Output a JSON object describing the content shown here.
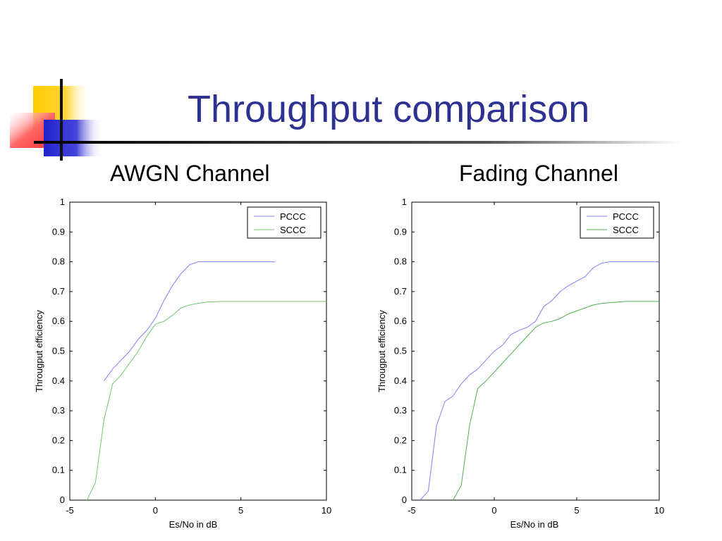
{
  "slide": {
    "title": "Throughput comparison"
  },
  "colors": {
    "title": "#2e3192",
    "pccc": "#8080ff",
    "sccc_awgn": "#6fc96f",
    "sccc_fading": "#4caf50"
  },
  "chart_data": [
    {
      "type": "line",
      "title": "AWGN Channel",
      "xlabel": "Es/No in dB",
      "ylabel": "Througput efficiency",
      "xlim": [
        -5,
        10
      ],
      "ylim": [
        0,
        1
      ],
      "xticks": [
        "-5",
        "0",
        "5",
        "10"
      ],
      "yticks": [
        "0",
        "0.1",
        "0.2",
        "0.3",
        "0.4",
        "0.5",
        "0.6",
        "0.7",
        "0.8",
        "0.9",
        "1"
      ],
      "legend": "top-right",
      "series": [
        {
          "name": "PCCC",
          "x": [
            -3,
            -2.5,
            -2,
            -1.5,
            -1,
            -0.5,
            0,
            0.5,
            1,
            1.5,
            2,
            2.5,
            3,
            4,
            5,
            6,
            7
          ],
          "y": [
            0.4,
            0.44,
            0.47,
            0.5,
            0.54,
            0.57,
            0.61,
            0.67,
            0.72,
            0.76,
            0.79,
            0.8,
            0.8,
            0.8,
            0.8,
            0.8,
            0.8
          ]
        },
        {
          "name": "SCCC",
          "x": [
            -4,
            -3.5,
            -3,
            -2.5,
            -2,
            -1.5,
            -1,
            -0.5,
            0,
            0.5,
            1,
            1.5,
            2,
            2.5,
            3,
            4,
            5,
            6,
            7,
            8,
            9,
            10
          ],
          "y": [
            0.0,
            0.06,
            0.27,
            0.39,
            0.42,
            0.46,
            0.5,
            0.55,
            0.59,
            0.6,
            0.62,
            0.645,
            0.655,
            0.66,
            0.665,
            0.667,
            0.667,
            0.667,
            0.667,
            0.667,
            0.667,
            0.667
          ]
        }
      ]
    },
    {
      "type": "line",
      "title": "Fading Channel",
      "xlabel": "Es/No in dB",
      "ylabel": "Througput efficiency",
      "xlim": [
        -5,
        10
      ],
      "ylim": [
        0,
        1
      ],
      "xticks": [
        "-5",
        "0",
        "5",
        "10"
      ],
      "yticks": [
        "0",
        "0.1",
        "0.2",
        "0.3",
        "0.4",
        "0.5",
        "0.6",
        "0.7",
        "0.8",
        "0.9",
        "1"
      ],
      "legend": "top-right",
      "series": [
        {
          "name": "PCCC",
          "x": [
            -4.5,
            -4,
            -3.5,
            -3,
            -2.5,
            -2,
            -1.5,
            -1,
            -0.5,
            0,
            0.5,
            1,
            1.5,
            2,
            2.5,
            3,
            3.5,
            4,
            4.5,
            5,
            5.5,
            6,
            6.5,
            7,
            8,
            9,
            10
          ],
          "y": [
            0.0,
            0.03,
            0.25,
            0.33,
            0.35,
            0.39,
            0.42,
            0.44,
            0.47,
            0.5,
            0.52,
            0.555,
            0.57,
            0.58,
            0.6,
            0.65,
            0.67,
            0.7,
            0.72,
            0.735,
            0.75,
            0.78,
            0.795,
            0.8,
            0.8,
            0.8,
            0.8
          ]
        },
        {
          "name": "SCCC",
          "x": [
            -2.5,
            -2,
            -1.5,
            -1,
            -0.5,
            0,
            0.5,
            1,
            1.5,
            2,
            2.5,
            3,
            3.5,
            4,
            4.5,
            5,
            5.5,
            6,
            6.5,
            7,
            8,
            9,
            10
          ],
          "y": [
            0.0,
            0.05,
            0.25,
            0.375,
            0.4,
            0.43,
            0.46,
            0.49,
            0.52,
            0.55,
            0.58,
            0.595,
            0.6,
            0.61,
            0.625,
            0.635,
            0.645,
            0.655,
            0.66,
            0.663,
            0.667,
            0.667,
            0.667
          ]
        }
      ]
    }
  ]
}
